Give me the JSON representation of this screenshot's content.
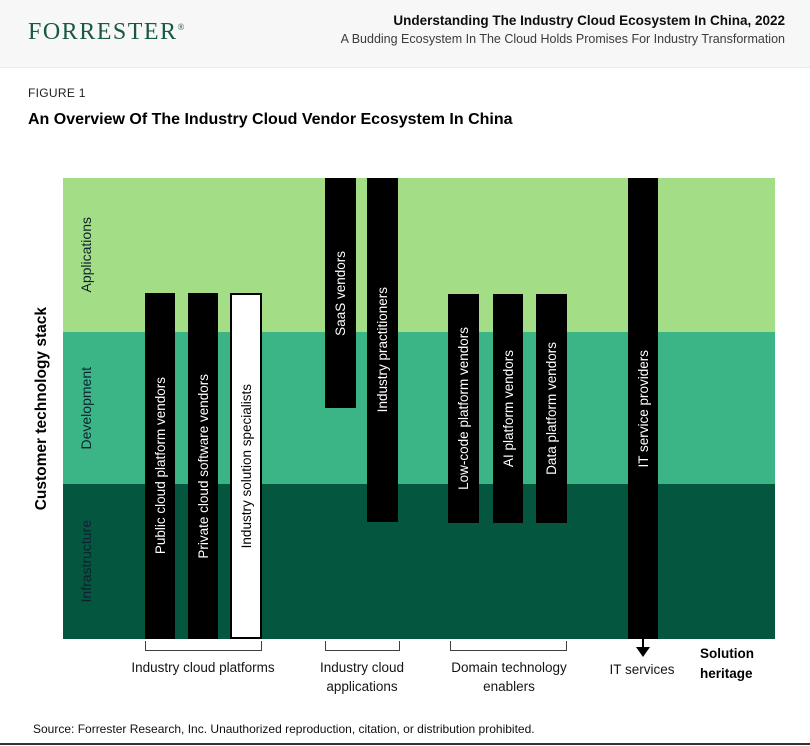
{
  "header": {
    "logo": "FORRESTER",
    "registered_mark": "®",
    "title": "Understanding The Industry Cloud Ecosystem In China, 2022",
    "subtitle": "A Budding Ecosystem In The Cloud Holds Promises For Industry Transformation"
  },
  "figure": {
    "label": "FIGURE 1",
    "title": "An Overview Of The Industry Cloud Vendor Ecosystem In China"
  },
  "diagram": {
    "y_axis_label": "Customer technology stack",
    "bottom_axis_label": "Solution heritage",
    "layers": [
      {
        "label": "Applications",
        "color": "#a3dd85"
      },
      {
        "label": "Development",
        "color": "#3cb586"
      },
      {
        "label": "Infrastructure",
        "color": "#04563f"
      }
    ],
    "bars": [
      {
        "label": "Public cloud platform vendors",
        "style": "black",
        "group": "Industry cloud platforms",
        "spans": "lower Applications through Infrastructure"
      },
      {
        "label": "Private cloud software vendors",
        "style": "black",
        "group": "Industry cloud platforms",
        "spans": "lower Applications through Infrastructure"
      },
      {
        "label": "Industry solution specialists",
        "style": "white-outline",
        "group": "Industry cloud platforms",
        "spans": "lower Applications through Infrastructure"
      },
      {
        "label": "SaaS vendors",
        "style": "black",
        "group": "Industry cloud applications",
        "spans": "top of Applications to mid Development"
      },
      {
        "label": "Industry practitioners",
        "style": "black",
        "group": "Industry cloud applications",
        "spans": "top of Applications to upper Infrastructure"
      },
      {
        "label": "Low-code platform vendors",
        "style": "black",
        "group": "Domain technology enablers",
        "spans": "lower Applications to upper Infrastructure"
      },
      {
        "label": "AI platform vendors",
        "style": "black",
        "group": "Domain technology enablers",
        "spans": "lower Applications to upper Infrastructure"
      },
      {
        "label": "Data platform vendors",
        "style": "black",
        "group": "Domain technology enablers",
        "spans": "lower Applications to upper Infrastructure"
      },
      {
        "label": "IT service providers",
        "style": "black",
        "group": "IT services",
        "spans": "full stack, arrow continues below",
        "arrow": "down"
      }
    ],
    "groups": [
      {
        "label": "Industry cloud platforms"
      },
      {
        "label": "Industry cloud applications"
      },
      {
        "label": "Domain technology enablers"
      },
      {
        "label": "IT services"
      }
    ]
  },
  "footer": {
    "source": "Source: Forrester Research, Inc. Unauthorized reproduction, citation, or distribution prohibited."
  }
}
